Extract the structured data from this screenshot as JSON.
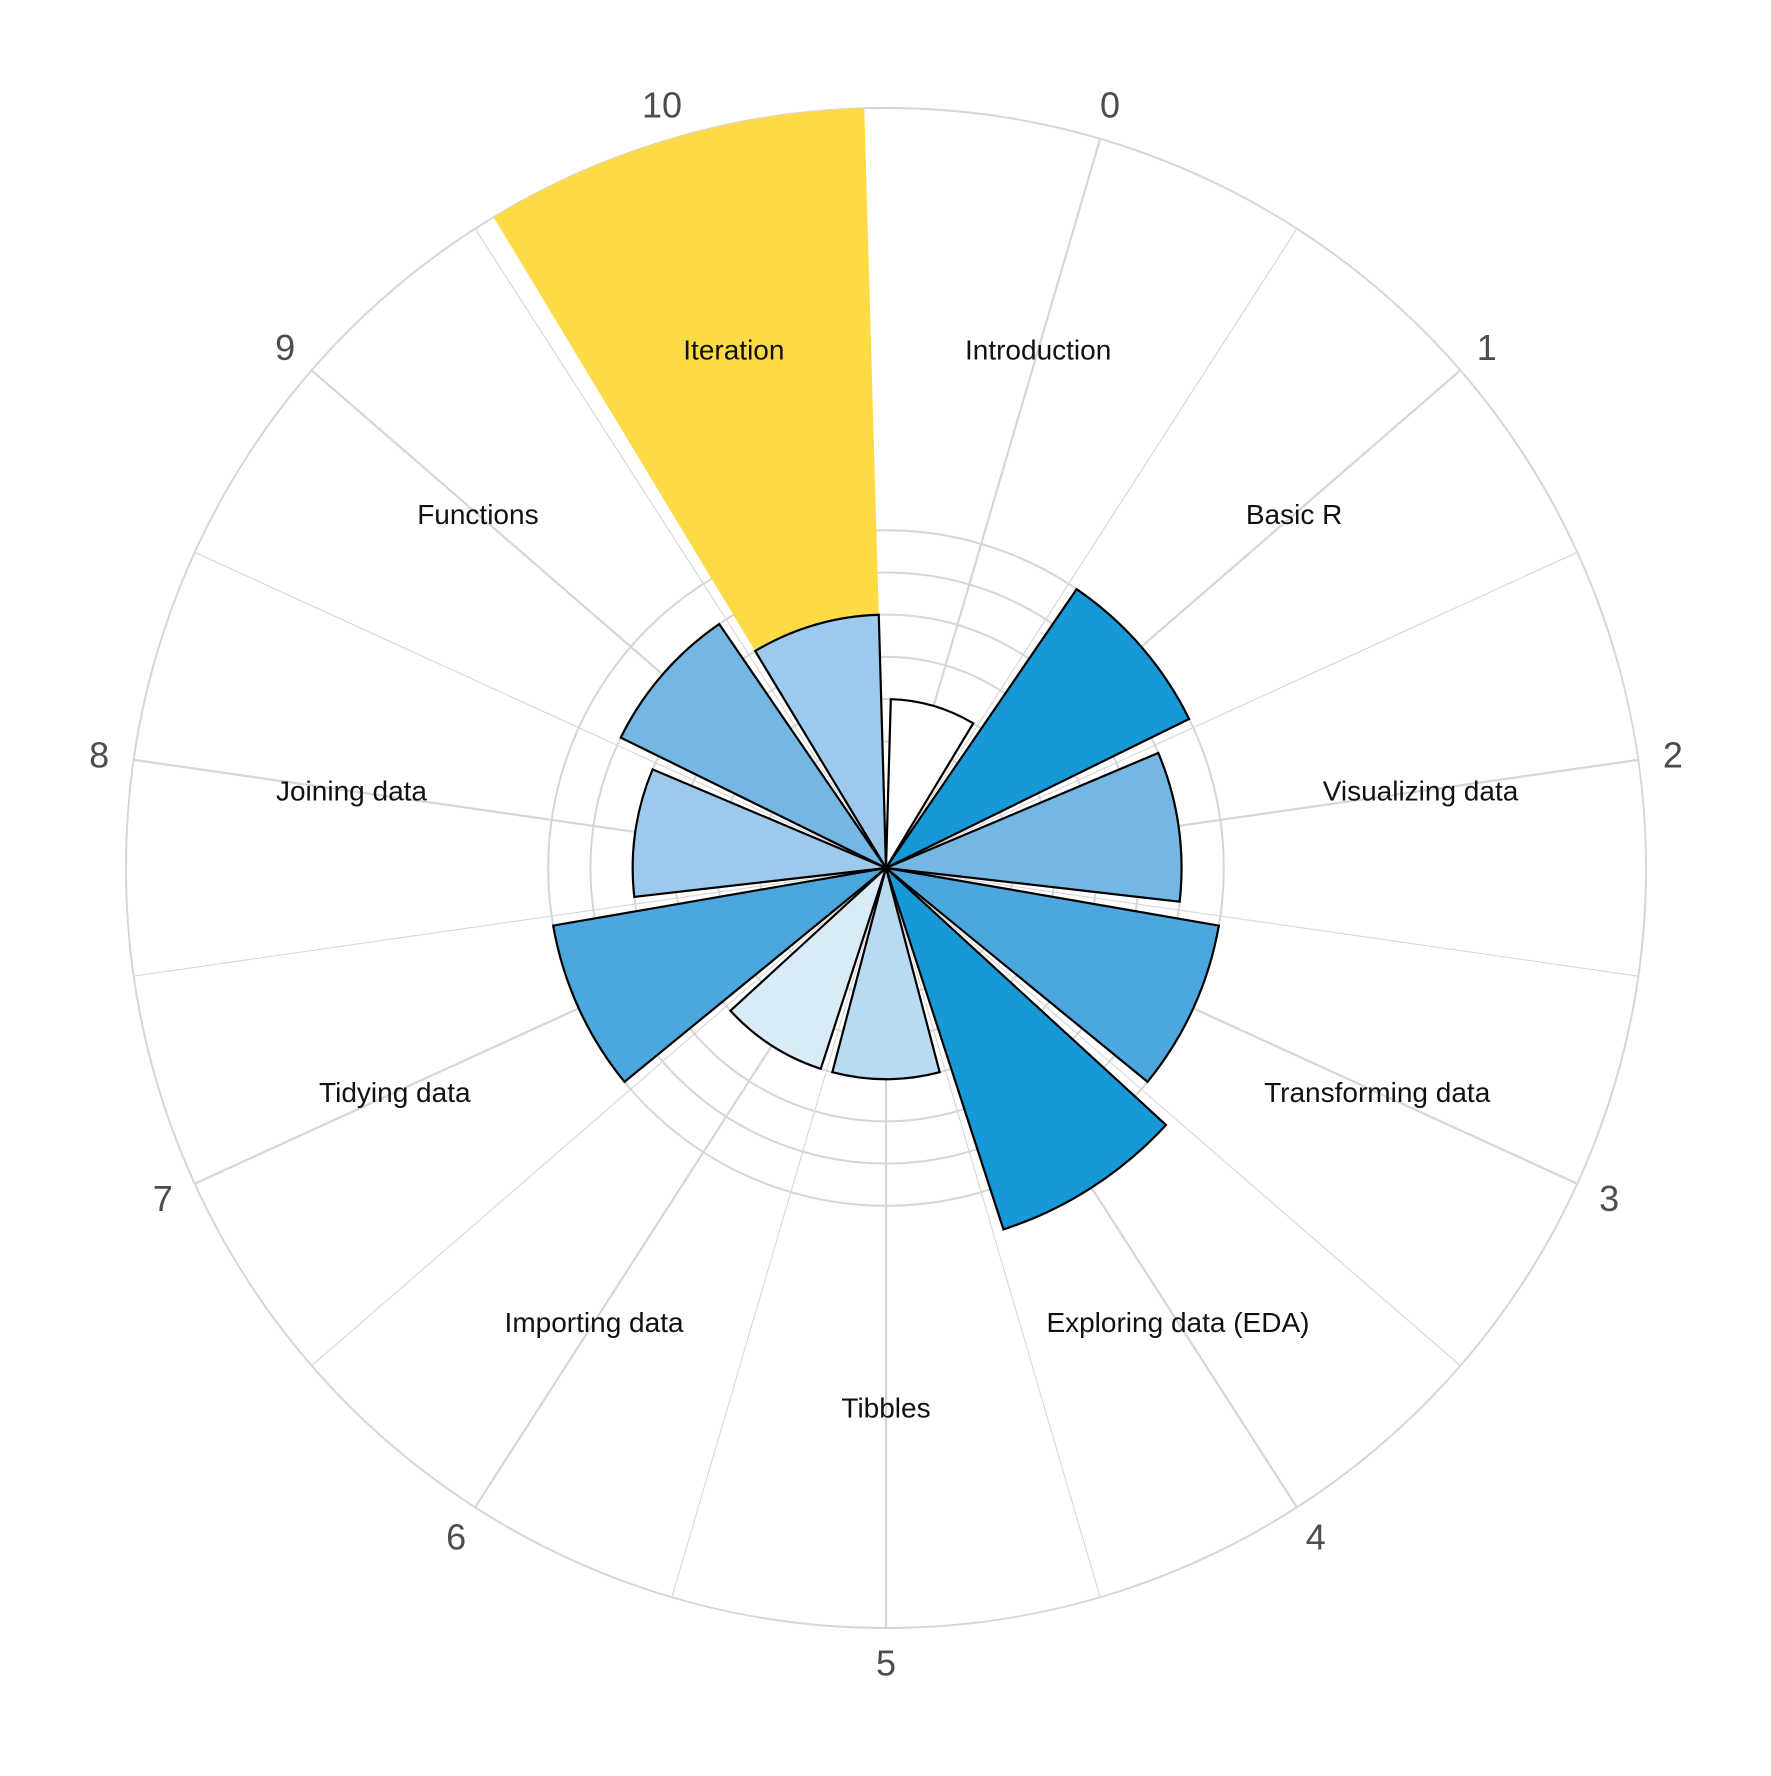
{
  "chart_data": {
    "type": "polar-bar",
    "chart_kind": "radial bar chart (coord_polar)",
    "title": "",
    "xlabel": "",
    "ylabel": "",
    "theta_ticks": [
      "0",
      "1",
      "2",
      "3",
      "4",
      "5",
      "6",
      "7",
      "8",
      "9",
      "10"
    ],
    "theta_domain": [
      -0.5,
      10.5
    ],
    "radial_max": 18,
    "grid": true,
    "radial_grid_values": [
      3,
      4,
      5,
      6,
      7,
      8
    ],
    "categories": [
      "Introduction",
      "Basic R",
      "Visualizing data",
      "Transforming data",
      "Exploring data (EDA)",
      "Tibbles",
      "Importing data",
      "Tidying data",
      "Joining data",
      "Functions",
      "Iteration"
    ],
    "values": [
      4,
      8,
      7,
      8,
      9,
      5,
      5,
      8,
      6,
      7,
      6
    ],
    "fills": [
      "#ffffff",
      "#1699d6",
      "#74b7e3",
      "#4ba7dd",
      "#1699d6",
      "#b9dbf2",
      "#daebf8",
      "#4ba7dd",
      "#9cc9ec",
      "#74b7e3",
      "#9cc9ec"
    ],
    "highlight": {
      "category": "Iteration",
      "value": 18,
      "color": "#fddb46"
    },
    "colors": {
      "grid": "#d6d6d6",
      "bar_outline": "#000000"
    }
  }
}
